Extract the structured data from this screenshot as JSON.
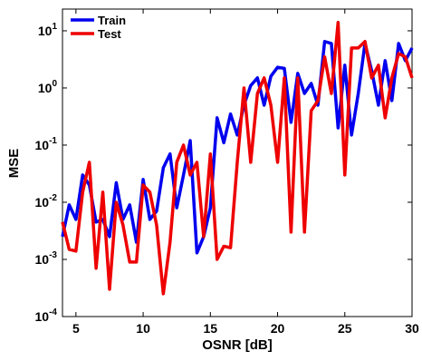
{
  "chart_data": {
    "type": "line",
    "log_y": true,
    "xlabel": "OSNR [dB]",
    "ylabel": "MSE",
    "x": [
      4,
      4.5,
      5,
      5.5,
      6,
      6.5,
      7,
      7.5,
      8,
      8.5,
      9,
      9.5,
      10,
      10.5,
      11,
      11.5,
      12,
      12.5,
      13,
      13.5,
      14,
      14.5,
      15,
      15.5,
      16,
      16.5,
      17,
      17.5,
      18,
      18.5,
      19,
      19.5,
      20,
      20.5,
      21,
      21.5,
      22,
      22.5,
      23,
      23.5,
      24,
      24.5,
      25,
      25.5,
      26,
      26.5,
      27,
      27.5,
      28,
      28.5,
      29,
      29.5,
      30
    ],
    "series": [
      {
        "name": "Train",
        "color": "#0000ee",
        "values": [
          0.0025,
          0.009,
          0.005,
          0.03,
          0.02,
          0.0045,
          0.005,
          0.0025,
          0.022,
          0.005,
          0.009,
          0.002,
          0.025,
          0.005,
          0.007,
          0.04,
          0.07,
          0.008,
          0.03,
          0.12,
          0.0013,
          0.0025,
          0.008,
          0.3,
          0.11,
          0.35,
          0.15,
          0.5,
          1.1,
          1.5,
          0.5,
          1.6,
          2.3,
          2.2,
          0.25,
          1.8,
          0.8,
          1.2,
          0.5,
          6.5,
          6,
          0.2,
          2.5,
          0.15,
          0.8,
          6,
          2,
          0.5,
          3,
          0.6,
          6,
          3,
          5
        ]
      },
      {
        "name": "Test",
        "color": "#ee0000",
        "values": [
          0.0045,
          0.0015,
          0.0014,
          0.015,
          0.05,
          0.0007,
          0.015,
          0.0003,
          0.01,
          0.004,
          0.0009,
          0.0009,
          0.02,
          0.015,
          0.004,
          0.00025,
          0.002,
          0.05,
          0.1,
          0.03,
          0.05,
          0.0025,
          0.07,
          0.001,
          0.0017,
          0.0016,
          0.05,
          1.0,
          0.05,
          0.8,
          1.5,
          0.5,
          0.05,
          1.5,
          0.003,
          1.5,
          0.003,
          0.4,
          0.6,
          3.5,
          0.8,
          14,
          0.03,
          5,
          5,
          6.5,
          1.5,
          2.5,
          0.3,
          1.5,
          4,
          3.5,
          1.5
        ]
      }
    ],
    "xlim": [
      4,
      30
    ],
    "xticks": [
      5,
      10,
      15,
      20,
      25,
      30
    ],
    "ylim": [
      0.0001,
      24
    ],
    "yticks": [
      {
        "value": 0.0001,
        "label": "10^-4"
      },
      {
        "value": 0.001,
        "label": "10^-3"
      },
      {
        "value": 0.01,
        "label": "10^-2"
      },
      {
        "value": 0.1,
        "label": "10^-1"
      },
      {
        "value": 1,
        "label": "10^0"
      },
      {
        "value": 10,
        "label": "10^1"
      }
    ],
    "legend": "upper left"
  }
}
